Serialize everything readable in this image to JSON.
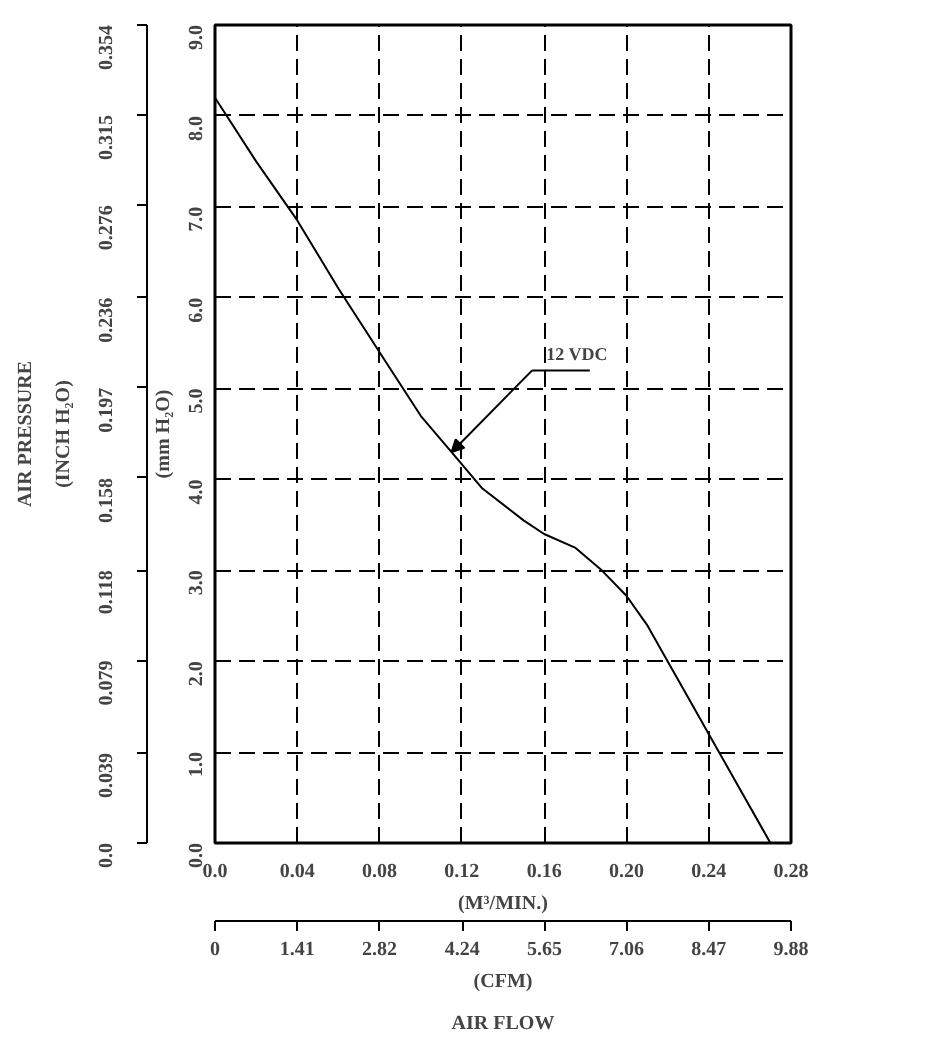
{
  "chart_data": {
    "type": "line",
    "x": [
      0,
      0.02,
      0.04,
      0.06,
      0.08,
      0.1,
      0.115,
      0.13,
      0.15,
      0.16,
      0.175,
      0.188,
      0.2,
      0.21,
      0.22,
      0.23,
      0.24,
      0.255,
      0.27
    ],
    "series": [
      {
        "color": "#000000",
        "values": [
          8.2,
          7.5,
          6.85,
          6.1,
          5.4,
          4.7,
          4.3,
          3.9,
          3.55,
          3.4,
          3.25,
          3.0,
          2.72,
          2.4,
          2.0,
          1.6,
          1.2,
          0.6,
          0.0
        ]
      }
    ],
    "xlim": [
      0,
      0.28
    ],
    "xticks": [
      {
        "value": 0,
        "label": "0.0"
      },
      0.04,
      0.08,
      0.12,
      0.16,
      {
        "value": 0.2,
        "label": "0.20"
      },
      0.24,
      0.28
    ],
    "ylim": [
      0,
      9
    ],
    "yticks": [
      {
        "value": 0,
        "label": "0.0"
      },
      {
        "value": 1,
        "label": "1.0"
      },
      {
        "value": 2,
        "label": "2.0"
      },
      {
        "value": 3,
        "label": "3.0"
      },
      {
        "value": 4,
        "label": "4.0"
      },
      {
        "value": 5,
        "label": "5.0"
      },
      {
        "value": 6,
        "label": "6.0"
      },
      {
        "value": 7,
        "label": "7.0"
      },
      {
        "value": 8,
        "label": "8.0"
      },
      {
        "value": 9,
        "label": "9.0"
      }
    ],
    "y2lim": [
      0,
      0.354
    ],
    "y2ticks": [
      {
        "value": 0,
        "label": "0.0"
      },
      0.039,
      0.079,
      0.118,
      0.158,
      0.197,
      0.236,
      0.276,
      0.315,
      0.354
    ],
    "x2lim": [
      0,
      9.88
    ],
    "x2ticks": [
      0,
      1.41,
      2.82,
      4.24,
      5.65,
      7.06,
      8.47,
      9.88
    ],
    "xlabel": "(M³/MIN.)",
    "x2label": "(CFM)",
    "ylabel": "(mm H₂O)",
    "y2label": "(INCH H₂O)",
    "annotations": [
      {
        "text": "12 VDC",
        "x": 0.115,
        "y": 4.3
      },
      "AIR PRESSURE",
      "AIR FLOW"
    ],
    "grid": true,
    "line_style": "solid"
  }
}
